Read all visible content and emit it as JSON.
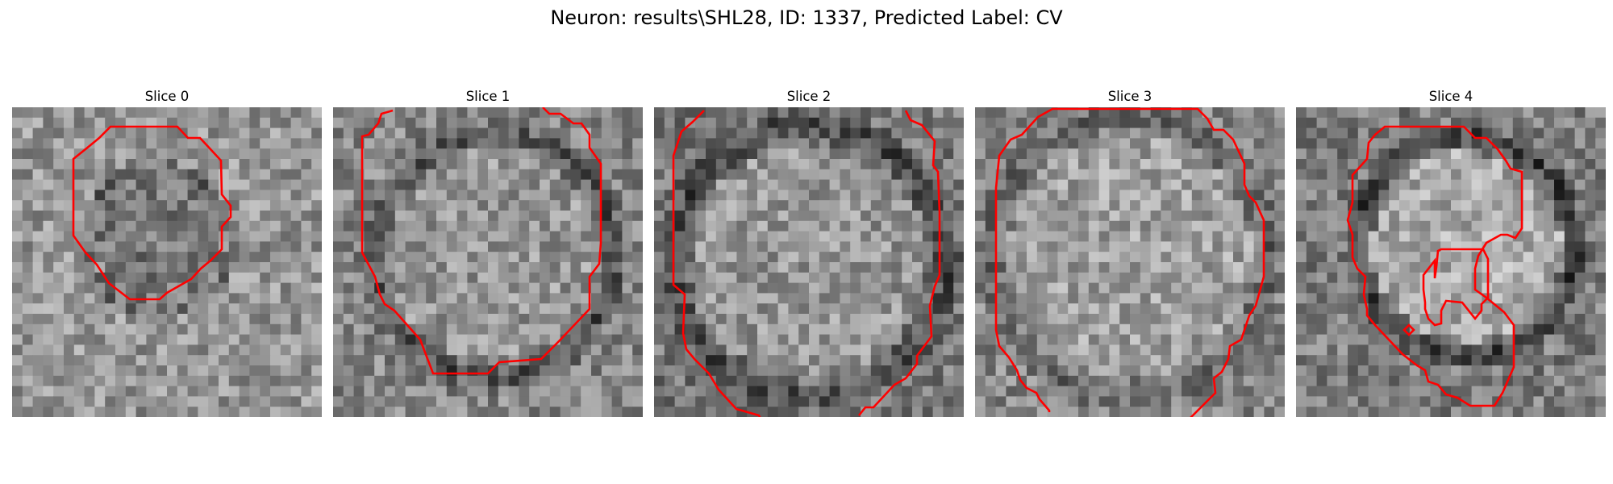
{
  "figure": {
    "title": "Neuron: results\\SHL28, ID: 1337, Predicted Label: CV"
  },
  "panels": [
    {
      "title": "Slice 0"
    },
    {
      "title": "Slice 1"
    },
    {
      "title": "Slice 2"
    },
    {
      "title": "Slice 3"
    },
    {
      "title": "Slice 4"
    }
  ],
  "contour_color": "#ff0000",
  "colormap": "gray"
}
